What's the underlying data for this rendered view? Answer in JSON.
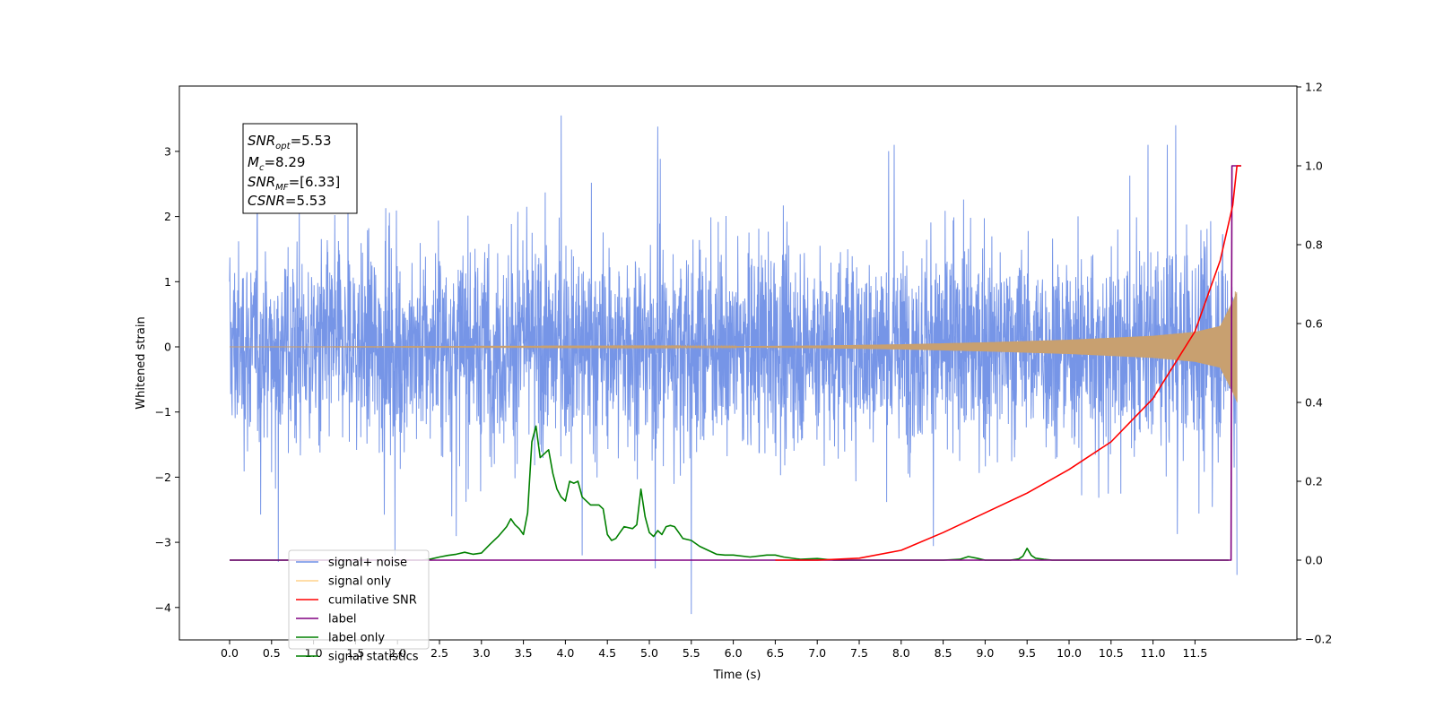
{
  "chart_data": {
    "type": "line",
    "xlabel": "Time (s)",
    "ylabel": "Whitened strain",
    "xlim": [
      -0.6,
      12.6
    ],
    "ylim": [
      -4.6,
      3.95
    ],
    "ylim_right": [
      -0.2,
      1.2
    ],
    "x_ticks": [
      "0.0",
      "0.5",
      "1.0",
      "1.5",
      "2.0",
      "2.5",
      "3.0",
      "3.5",
      "4.0",
      "4.5",
      "5.0",
      "5.5",
      "6.0",
      "6.5",
      "7.0",
      "7.5",
      "8.0",
      "8.5",
      "9.0",
      "9.5",
      "10.0",
      "10.5",
      "11.0",
      "11.5"
    ],
    "y_ticks": [
      "3",
      "2",
      "1",
      "0",
      "−1",
      "−2",
      "−3",
      "−4"
    ],
    "y_ticks_right": [
      "1.2",
      "1.0",
      "0.8",
      "0.6",
      "0.4",
      "0.2",
      "0.0",
      "−0.2"
    ],
    "annotation": {
      "snr_opt": "=5.53",
      "mc": "=8.29",
      "snr_mf": "=[6.33]",
      "csnr": "=5.53"
    },
    "legend_placement": "lower-left",
    "legend": [
      {
        "label": "signal+ noise",
        "color": "#6f8fe6"
      },
      {
        "label": "signal only",
        "color": "#ffbf5a"
      },
      {
        "label": "cumilative SNR",
        "color": "#ff0000"
      },
      {
        "label": "label",
        "color": "#800080"
      },
      {
        "label": "label only",
        "color": "#008000"
      },
      {
        "label": "signal statistics",
        "color": "#008000"
      }
    ],
    "series": [
      {
        "name": "signal+ noise",
        "axis": "left",
        "color": "#6f8fe6",
        "x_range": [
          0.0,
          12.0
        ],
        "envelope_typical": 1.4,
        "notable_points": [
          [
            0.58,
            -3.3
          ],
          [
            1.97,
            -3.2
          ],
          [
            3.95,
            3.55
          ],
          [
            4.2,
            -3.2
          ],
          [
            5.1,
            3.38
          ],
          [
            5.5,
            -4.1
          ],
          [
            5.07,
            -3.4
          ],
          [
            11.27,
            3.4
          ],
          [
            12.0,
            -3.5
          ]
        ]
      },
      {
        "name": "signal only",
        "axis": "left",
        "color": "#c8a070",
        "x": [
          0.0,
          6.0,
          7.0,
          8.0,
          9.0,
          10.0,
          11.0,
          11.5,
          11.8,
          11.95,
          12.0
        ],
        "y": [
          0.0,
          0.01,
          0.02,
          0.04,
          0.07,
          0.11,
          0.17,
          0.23,
          0.32,
          0.7,
          0.85
        ]
      },
      {
        "name": "cumilative SNR",
        "axis": "right",
        "color": "#ff0000",
        "x": [
          6.5,
          7.0,
          7.5,
          8.0,
          8.5,
          9.0,
          9.5,
          10.0,
          10.5,
          11.0,
          11.5,
          11.8,
          11.95,
          12.0,
          12.05
        ],
        "y": [
          0.0,
          0.0,
          0.005,
          0.025,
          0.07,
          0.12,
          0.17,
          0.23,
          0.3,
          0.41,
          0.58,
          0.76,
          0.9,
          1.0,
          1.0
        ]
      },
      {
        "name": "label",
        "axis": "right",
        "color": "#800080",
        "x": [
          0.0,
          11.85,
          11.93,
          11.94,
          12.05
        ],
        "y": [
          0.0,
          0.0,
          0.0,
          1.0,
          1.0
        ]
      },
      {
        "name": "signal statistics",
        "axis": "right",
        "color": "#008000",
        "x": [
          0.0,
          2.3,
          2.4,
          2.5,
          2.6,
          2.7,
          2.8,
          2.9,
          3.0,
          3.1,
          3.2,
          3.3,
          3.35,
          3.4,
          3.45,
          3.5,
          3.55,
          3.6,
          3.65,
          3.7,
          3.75,
          3.8,
          3.85,
          3.9,
          3.95,
          4.0,
          4.05,
          4.1,
          4.15,
          4.2,
          4.3,
          4.4,
          4.45,
          4.5,
          4.55,
          4.6,
          4.65,
          4.7,
          4.8,
          4.85,
          4.9,
          4.95,
          5.0,
          5.05,
          5.1,
          5.15,
          5.2,
          5.25,
          5.3,
          5.35,
          5.4,
          5.5,
          5.6,
          5.7,
          5.8,
          5.9,
          6.0,
          6.2,
          6.4,
          6.5,
          6.6,
          6.8,
          7.0,
          7.2,
          7.5,
          8.0,
          8.5,
          8.7,
          8.8,
          8.9,
          9.0,
          9.3,
          9.4,
          9.45,
          9.5,
          9.55,
          9.6,
          9.7,
          9.8,
          10.0,
          11.9
        ],
        "y": [
          0.0,
          0.0,
          0.003,
          0.008,
          0.012,
          0.015,
          0.02,
          0.015,
          0.018,
          0.04,
          0.06,
          0.085,
          0.105,
          0.09,
          0.08,
          0.065,
          0.12,
          0.3,
          0.34,
          0.26,
          0.27,
          0.28,
          0.22,
          0.18,
          0.16,
          0.15,
          0.2,
          0.195,
          0.2,
          0.16,
          0.14,
          0.14,
          0.13,
          0.065,
          0.05,
          0.055,
          0.07,
          0.085,
          0.08,
          0.09,
          0.18,
          0.11,
          0.07,
          0.06,
          0.075,
          0.065,
          0.085,
          0.088,
          0.085,
          0.07,
          0.055,
          0.05,
          0.035,
          0.025,
          0.015,
          0.013,
          0.013,
          0.008,
          0.013,
          0.013,
          0.008,
          0.002,
          0.004,
          0.0,
          0.0,
          0.0,
          0.0,
          0.002,
          0.009,
          0.005,
          0.0,
          0.0,
          0.003,
          0.01,
          0.03,
          0.012,
          0.005,
          0.002,
          0.0,
          0.0,
          0.0
        ]
      }
    ]
  }
}
